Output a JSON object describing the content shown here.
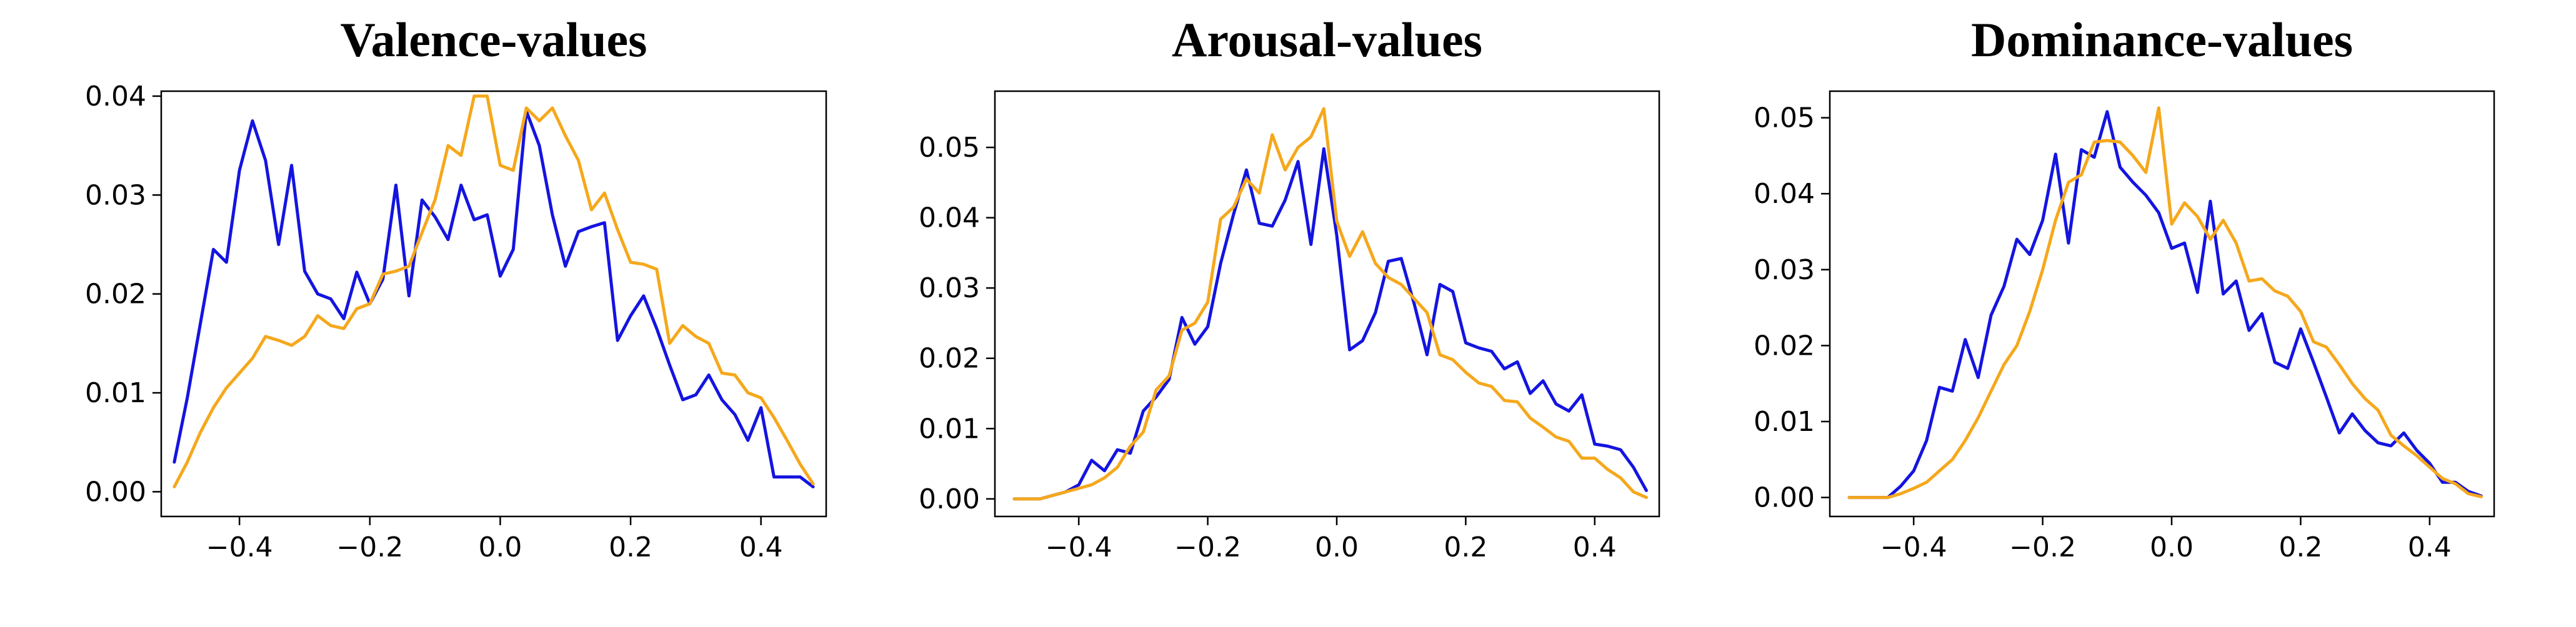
{
  "colors": {
    "series_a": "#1414e0",
    "series_b": "#f5a81c"
  },
  "chart_data": [
    {
      "type": "line",
      "title": "Valence-values",
      "xlim": [
        -0.52,
        0.5
      ],
      "ylim": [
        -0.0025,
        0.0405
      ],
      "xticks": [
        -0.4,
        -0.2,
        0.0,
        0.2,
        0.4
      ],
      "xtick_labels": [
        "−0.4",
        "−0.2",
        "0.0",
        "0.2",
        "0.4"
      ],
      "yticks": [
        0.0,
        0.01,
        0.02,
        0.03,
        0.04
      ],
      "ytick_labels": [
        "0.00",
        "0.01",
        "0.02",
        "0.03",
        "0.04"
      ],
      "grid": false,
      "series": [
        {
          "color": "#1414e0",
          "x": [
            -0.5,
            -0.48,
            -0.46,
            -0.44,
            -0.42,
            -0.4,
            -0.38,
            -0.36,
            -0.34,
            -0.32,
            -0.3,
            -0.28,
            -0.26,
            -0.24,
            -0.22,
            -0.2,
            -0.18,
            -0.16,
            -0.14,
            -0.12,
            -0.1,
            -0.08,
            -0.06,
            -0.04,
            -0.02,
            0.0,
            0.02,
            0.04,
            0.06,
            0.08,
            0.1,
            0.12,
            0.14,
            0.16,
            0.18,
            0.2,
            0.22,
            0.24,
            0.26,
            0.28,
            0.3,
            0.32,
            0.34,
            0.36,
            0.38,
            0.4,
            0.42,
            0.44,
            0.46,
            0.48
          ],
          "y": [
            0.003,
            0.0095,
            0.017,
            0.0245,
            0.0232,
            0.0325,
            0.0375,
            0.0335,
            0.025,
            0.033,
            0.0223,
            0.02,
            0.0195,
            0.0175,
            0.0222,
            0.019,
            0.0215,
            0.031,
            0.0198,
            0.0295,
            0.0278,
            0.0255,
            0.031,
            0.0275,
            0.028,
            0.0218,
            0.0245,
            0.0385,
            0.035,
            0.028,
            0.0228,
            0.0263,
            0.0268,
            0.0272,
            0.0153,
            0.0178,
            0.0198,
            0.0165,
            0.0128,
            0.0093,
            0.0098,
            0.0118,
            0.0093,
            0.0078,
            0.0052,
            0.0085,
            0.0015,
            0.0015,
            0.0015,
            0.0005
          ]
        },
        {
          "color": "#f5a81c",
          "x": [
            -0.5,
            -0.48,
            -0.46,
            -0.44,
            -0.42,
            -0.4,
            -0.38,
            -0.36,
            -0.34,
            -0.32,
            -0.3,
            -0.28,
            -0.26,
            -0.24,
            -0.22,
            -0.2,
            -0.18,
            -0.16,
            -0.14,
            -0.12,
            -0.1,
            -0.08,
            -0.06,
            -0.04,
            -0.02,
            0.0,
            0.02,
            0.04,
            0.06,
            0.08,
            0.1,
            0.12,
            0.14,
            0.16,
            0.18,
            0.2,
            0.22,
            0.24,
            0.26,
            0.28,
            0.3,
            0.32,
            0.34,
            0.36,
            0.38,
            0.4,
            0.42,
            0.44,
            0.46,
            0.48
          ],
          "y": [
            0.0005,
            0.003,
            0.006,
            0.0085,
            0.0105,
            0.012,
            0.0135,
            0.0157,
            0.0153,
            0.0148,
            0.0157,
            0.0178,
            0.0168,
            0.0165,
            0.0185,
            0.019,
            0.022,
            0.0223,
            0.0228,
            0.0262,
            0.0295,
            0.035,
            0.034,
            0.04,
            0.04,
            0.033,
            0.0325,
            0.0388,
            0.0375,
            0.0388,
            0.036,
            0.0335,
            0.0285,
            0.0302,
            0.0265,
            0.0232,
            0.023,
            0.0225,
            0.015,
            0.0168,
            0.0157,
            0.015,
            0.012,
            0.0118,
            0.01,
            0.0095,
            0.0075,
            0.0052,
            0.0028,
            0.0008
          ]
        }
      ]
    },
    {
      "type": "line",
      "title": "Arousal-values",
      "xlim": [
        -0.53,
        0.5
      ],
      "ylim": [
        -0.0025,
        0.058
      ],
      "xticks": [
        -0.4,
        -0.2,
        0.0,
        0.2,
        0.4
      ],
      "xtick_labels": [
        "−0.4",
        "−0.2",
        "0.0",
        "0.2",
        "0.4"
      ],
      "yticks": [
        0.0,
        0.01,
        0.02,
        0.03,
        0.04,
        0.05
      ],
      "ytick_labels": [
        "0.00",
        "0.01",
        "0.02",
        "0.03",
        "0.04",
        "0.05"
      ],
      "grid": false,
      "series": [
        {
          "color": "#1414e0",
          "x": [
            -0.5,
            -0.48,
            -0.46,
            -0.44,
            -0.42,
            -0.4,
            -0.38,
            -0.36,
            -0.34,
            -0.32,
            -0.3,
            -0.28,
            -0.26,
            -0.24,
            -0.22,
            -0.2,
            -0.18,
            -0.16,
            -0.14,
            -0.12,
            -0.1,
            -0.08,
            -0.06,
            -0.04,
            -0.02,
            0.0,
            0.02,
            0.04,
            0.06,
            0.08,
            0.1,
            0.12,
            0.14,
            0.16,
            0.18,
            0.2,
            0.22,
            0.24,
            0.26,
            0.28,
            0.3,
            0.32,
            0.34,
            0.36,
            0.38,
            0.4,
            0.42,
            0.44,
            0.46,
            0.48
          ],
          "y": [
            0.0,
            0.0,
            0.0,
            0.0005,
            0.001,
            0.002,
            0.0055,
            0.004,
            0.007,
            0.0065,
            0.0125,
            0.0145,
            0.017,
            0.0258,
            0.022,
            0.0245,
            0.0335,
            0.0405,
            0.0468,
            0.0392,
            0.0388,
            0.0425,
            0.048,
            0.0362,
            0.0498,
            0.0375,
            0.0212,
            0.0225,
            0.0265,
            0.0338,
            0.0342,
            0.0278,
            0.0205,
            0.0305,
            0.0295,
            0.0222,
            0.0215,
            0.021,
            0.0185,
            0.0195,
            0.015,
            0.0168,
            0.0135,
            0.0125,
            0.0148,
            0.0078,
            0.0075,
            0.007,
            0.0045,
            0.0012
          ]
        },
        {
          "color": "#f5a81c",
          "x": [
            -0.5,
            -0.48,
            -0.46,
            -0.44,
            -0.42,
            -0.4,
            -0.38,
            -0.36,
            -0.34,
            -0.32,
            -0.3,
            -0.28,
            -0.26,
            -0.24,
            -0.22,
            -0.2,
            -0.18,
            -0.16,
            -0.14,
            -0.12,
            -0.1,
            -0.08,
            -0.06,
            -0.04,
            -0.02,
            0.0,
            0.02,
            0.04,
            0.06,
            0.08,
            0.1,
            0.12,
            0.14,
            0.16,
            0.18,
            0.2,
            0.22,
            0.24,
            0.26,
            0.28,
            0.3,
            0.32,
            0.34,
            0.36,
            0.38,
            0.4,
            0.42,
            0.44,
            0.46,
            0.48
          ],
          "y": [
            0.0,
            0.0,
            0.0,
            0.0005,
            0.001,
            0.0015,
            0.002,
            0.003,
            0.0045,
            0.0075,
            0.0095,
            0.0155,
            0.0175,
            0.024,
            0.025,
            0.028,
            0.0398,
            0.0415,
            0.0455,
            0.0435,
            0.0518,
            0.0468,
            0.05,
            0.0515,
            0.0555,
            0.0395,
            0.0345,
            0.038,
            0.0335,
            0.0315,
            0.0305,
            0.0285,
            0.0265,
            0.0205,
            0.0198,
            0.018,
            0.0165,
            0.016,
            0.014,
            0.0138,
            0.0115,
            0.0102,
            0.0088,
            0.0082,
            0.0058,
            0.0058,
            0.0042,
            0.003,
            0.001,
            0.0002
          ]
        }
      ]
    },
    {
      "type": "line",
      "title": "Dominance-values",
      "xlim": [
        -0.53,
        0.5
      ],
      "ylim": [
        -0.0025,
        0.0535
      ],
      "xticks": [
        -0.4,
        -0.2,
        0.0,
        0.2,
        0.4
      ],
      "xtick_labels": [
        "−0.4",
        "−0.2",
        "0.0",
        "0.2",
        "0.4"
      ],
      "yticks": [
        0.0,
        0.01,
        0.02,
        0.03,
        0.04,
        0.05
      ],
      "ytick_labels": [
        "0.00",
        "0.01",
        "0.02",
        "0.03",
        "0.04",
        "0.05"
      ],
      "grid": false,
      "series": [
        {
          "color": "#1414e0",
          "x": [
            -0.5,
            -0.48,
            -0.46,
            -0.44,
            -0.42,
            -0.4,
            -0.38,
            -0.36,
            -0.34,
            -0.32,
            -0.3,
            -0.28,
            -0.26,
            -0.24,
            -0.22,
            -0.2,
            -0.18,
            -0.16,
            -0.14,
            -0.12,
            -0.1,
            -0.08,
            -0.06,
            -0.04,
            -0.02,
            0.0,
            0.02,
            0.04,
            0.06,
            0.08,
            0.1,
            0.12,
            0.14,
            0.16,
            0.18,
            0.2,
            0.22,
            0.24,
            0.26,
            0.28,
            0.3,
            0.32,
            0.34,
            0.36,
            0.38,
            0.4,
            0.42,
            0.44,
            0.46,
            0.48
          ],
          "y": [
            0.0,
            0.0,
            0.0,
            0.0,
            0.0015,
            0.0035,
            0.0075,
            0.0145,
            0.014,
            0.0208,
            0.0158,
            0.024,
            0.0278,
            0.034,
            0.032,
            0.0365,
            0.0452,
            0.0335,
            0.0458,
            0.0448,
            0.0508,
            0.0435,
            0.0415,
            0.0398,
            0.0375,
            0.0328,
            0.0335,
            0.027,
            0.039,
            0.0268,
            0.0285,
            0.022,
            0.0242,
            0.0178,
            0.017,
            0.0222,
            0.0178,
            0.0132,
            0.0085,
            0.011,
            0.0088,
            0.0072,
            0.0068,
            0.0085,
            0.0062,
            0.0045,
            0.002,
            0.002,
            0.0008,
            0.0002
          ]
        },
        {
          "color": "#f5a81c",
          "x": [
            -0.5,
            -0.48,
            -0.46,
            -0.44,
            -0.42,
            -0.4,
            -0.38,
            -0.36,
            -0.34,
            -0.32,
            -0.3,
            -0.28,
            -0.26,
            -0.24,
            -0.22,
            -0.2,
            -0.18,
            -0.16,
            -0.14,
            -0.12,
            -0.1,
            -0.08,
            -0.06,
            -0.04,
            -0.02,
            0.0,
            0.02,
            0.04,
            0.06,
            0.08,
            0.1,
            0.12,
            0.14,
            0.16,
            0.18,
            0.2,
            0.22,
            0.24,
            0.26,
            0.28,
            0.3,
            0.32,
            0.34,
            0.36,
            0.38,
            0.4,
            0.42,
            0.44,
            0.46,
            0.48
          ],
          "y": [
            0.0,
            0.0,
            0.0,
            0.0,
            0.0005,
            0.0012,
            0.002,
            0.0035,
            0.005,
            0.0075,
            0.0105,
            0.014,
            0.0175,
            0.02,
            0.0245,
            0.03,
            0.0365,
            0.0415,
            0.0425,
            0.0468,
            0.047,
            0.0468,
            0.045,
            0.0428,
            0.0513,
            0.036,
            0.0388,
            0.037,
            0.034,
            0.0365,
            0.0335,
            0.0285,
            0.0288,
            0.0272,
            0.0265,
            0.0245,
            0.0205,
            0.0198,
            0.0175,
            0.015,
            0.013,
            0.0115,
            0.0082,
            0.0068,
            0.0055,
            0.004,
            0.0025,
            0.0018,
            0.0005,
            0.0001
          ]
        }
      ]
    }
  ]
}
